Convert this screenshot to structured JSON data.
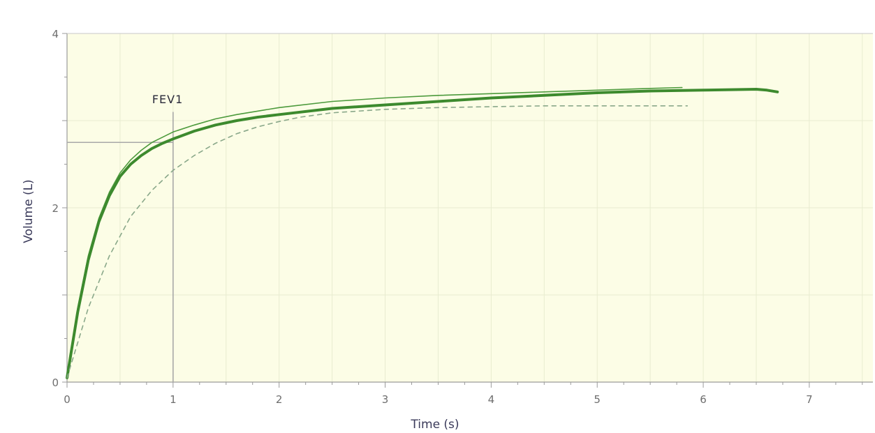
{
  "chart_data": {
    "type": "line",
    "xlabel": "Time (s)",
    "ylabel": "Volume (L)",
    "xlim": [
      0,
      7.6
    ],
    "ylim": [
      0,
      4
    ],
    "x_ticks": [
      "0",
      "1",
      "2",
      "3",
      "4",
      "5",
      "6",
      "7"
    ],
    "y_ticks": [
      "0",
      "2",
      "4"
    ],
    "grid": true,
    "background": "#fcfde6",
    "annotation": {
      "text": "FEV1",
      "x": 1.0,
      "y": 2.75
    },
    "series": [
      {
        "style": "thin-solid",
        "color": "#4c9a3c",
        "x": [
          0,
          0.1,
          0.2,
          0.3,
          0.4,
          0.5,
          0.6,
          0.7,
          0.8,
          0.9,
          1.0,
          1.2,
          1.4,
          1.6,
          1.8,
          2.0,
          2.5,
          3.0,
          3.5,
          4.0,
          4.5,
          5.0,
          5.5,
          5.8
        ],
        "y": [
          0.05,
          0.85,
          1.45,
          1.88,
          2.18,
          2.4,
          2.55,
          2.66,
          2.75,
          2.81,
          2.87,
          2.95,
          3.02,
          3.07,
          3.11,
          3.15,
          3.22,
          3.26,
          3.29,
          3.31,
          3.33,
          3.35,
          3.37,
          3.38
        ]
      },
      {
        "style": "thick-solid",
        "color": "#3d8a2e",
        "x": [
          0,
          0.1,
          0.2,
          0.3,
          0.4,
          0.5,
          0.6,
          0.7,
          0.8,
          0.9,
          1.0,
          1.2,
          1.4,
          1.6,
          1.8,
          2.0,
          2.5,
          3.0,
          3.5,
          4.0,
          4.5,
          5.0,
          5.5,
          6.0,
          6.5,
          6.6,
          6.7
        ],
        "y": [
          0.05,
          0.8,
          1.4,
          1.84,
          2.14,
          2.36,
          2.5,
          2.6,
          2.68,
          2.74,
          2.79,
          2.88,
          2.95,
          3.0,
          3.04,
          3.07,
          3.14,
          3.18,
          3.22,
          3.26,
          3.29,
          3.32,
          3.34,
          3.35,
          3.36,
          3.35,
          3.33
        ]
      },
      {
        "style": "dashed",
        "color": "#8aa88a",
        "x": [
          0,
          0.2,
          0.4,
          0.6,
          0.8,
          1.0,
          1.2,
          1.4,
          1.6,
          1.8,
          2.0,
          2.2,
          2.5,
          3.0,
          3.5,
          4.0,
          4.5,
          5.0,
          5.5,
          5.85
        ],
        "y": [
          0.05,
          0.85,
          1.45,
          1.9,
          2.2,
          2.43,
          2.6,
          2.74,
          2.85,
          2.93,
          2.99,
          3.04,
          3.09,
          3.13,
          3.15,
          3.16,
          3.17,
          3.17,
          3.17,
          3.17
        ]
      }
    ]
  }
}
